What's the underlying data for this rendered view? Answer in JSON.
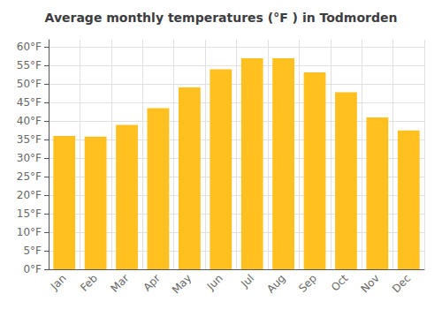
{
  "chart_data": {
    "type": "bar",
    "title": "Average monthly temperatures (°F ) in Todmorden",
    "categories": [
      "Jan",
      "Feb",
      "Mar",
      "Apr",
      "May",
      "Jun",
      "Jul",
      "Aug",
      "Sep",
      "Oct",
      "Nov",
      "Dec"
    ],
    "values": [
      36.0,
      35.8,
      39.0,
      43.5,
      49.1,
      54.0,
      57.0,
      57.0,
      53.2,
      47.8,
      41.0,
      37.5
    ],
    "color": "#FFC020",
    "ylim": [
      0,
      62
    ],
    "yticks": [
      {
        "value": 0,
        "label": "0°F"
      },
      {
        "value": 5,
        "label": "5°F"
      },
      {
        "value": 10,
        "label": "10°F"
      },
      {
        "value": 15,
        "label": "15°F"
      },
      {
        "value": 20,
        "label": "20°F"
      },
      {
        "value": 25,
        "label": "25°F"
      },
      {
        "value": 30,
        "label": "30°F"
      },
      {
        "value": 35,
        "label": "35°F"
      },
      {
        "value": 40,
        "label": "40°F"
      },
      {
        "value": 45,
        "label": "45°F"
      },
      {
        "value": 50,
        "label": "50°F"
      },
      {
        "value": 55,
        "label": "55°F"
      },
      {
        "value": 60,
        "label": "60°F"
      }
    ],
    "grid": true
  }
}
